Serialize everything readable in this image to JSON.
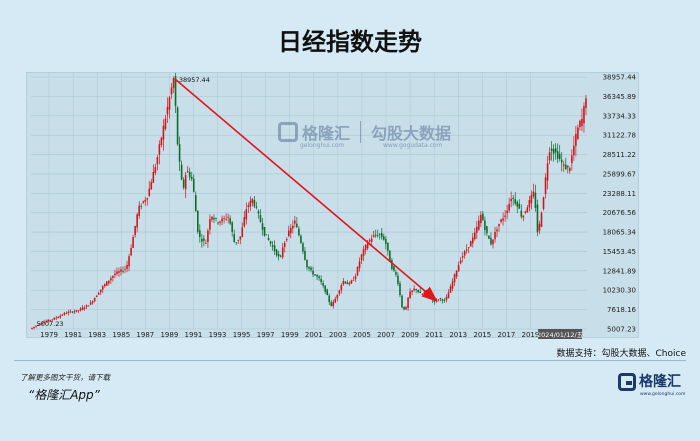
{
  "title": "日经指数走势",
  "source": "数据支持：勾股大数据、Choice",
  "footer": {
    "note": "了解更多图文干货，请下载",
    "app": "“格隆汇App”",
    "logo_text": "格隆汇",
    "logo_sub": "www.gelonghui.com"
  },
  "watermark": {
    "brand": "格隆汇",
    "brand_url": "gelonghui.com",
    "partner": "勾股大数据",
    "partner_url": "www.gogudata.com"
  },
  "colors": {
    "up": "#d0151b",
    "down": "#0d6b2a",
    "arrow": "#e0161c",
    "grid": "#a9c6d3"
  },
  "chart_data": {
    "type": "line",
    "title": "日经指数走势",
    "x_tick_labels": [
      "1979",
      "1981",
      "1983",
      "1985",
      "1987",
      "1989",
      "1991",
      "1993",
      "1995",
      "1997",
      "1999",
      "2001",
      "2003",
      "2005",
      "2007",
      "2009",
      "2011",
      "2013",
      "2015",
      "2017",
      "2019"
    ],
    "y_tick_labels": [
      "5007.23",
      "7618.16",
      "10230.30",
      "12841.89",
      "15453.45",
      "18065.34",
      "20676.56",
      "23288.11",
      "25899.67",
      "28511.22",
      "31122.78",
      "33734.33",
      "36345.89",
      "38957.44"
    ],
    "ylim": [
      5007.23,
      38957.44
    ],
    "xlim": [
      1978.0,
      2024.2
    ],
    "annotations": [
      {
        "label": "38957.44",
        "x": 1989.95,
        "y": 38957.44
      },
      {
        "label": "5007.23",
        "x": 1978.3,
        "y": 5007.23
      }
    ],
    "cursor_label": "2024/01/12/五",
    "arrow": {
      "from": [
        1989.95,
        38700
      ],
      "to": [
        2011.7,
        8800
      ]
    },
    "series": [
      {
        "x": [
          1978.0,
          1979.0,
          1980.0,
          1981.0,
          1982.0,
          1983.0,
          1984.0,
          1985.0,
          1986.0,
          1986.5,
          1987.0,
          1987.8,
          1988.0,
          1988.5,
          1989.0,
          1989.95,
          1990.3,
          1990.7,
          1991.0,
          1991.5,
          1992.0,
          1992.6,
          1993.0,
          1993.5,
          1994.0,
          1994.5,
          1995.0,
          1995.5,
          1996.0,
          1996.5,
          1997.0,
          1997.5,
          1998.0,
          1998.8,
          1999.0,
          1999.5,
          2000.0,
          2000.5,
          2001.0,
          2001.5,
          2002.0,
          2002.5,
          2003.0,
          2003.3,
          2004.0,
          2004.5,
          2005.0,
          2005.5,
          2006.0,
          2006.5,
          2007.0,
          2007.5,
          2008.0,
          2008.5,
          2008.9,
          2009.2,
          2009.5,
          2010.0,
          2010.5,
          2011.0,
          2011.5,
          2012.0,
          2012.5,
          2012.9,
          2013.3,
          2013.8,
          2014.3,
          2014.9,
          2015.5,
          2015.9,
          2016.3,
          2016.9,
          2017.5,
          2018.0,
          2018.5,
          2018.9,
          2019.3,
          2019.9,
          2020.2,
          2020.6,
          2021.0,
          2021.2,
          2021.8,
          2022.3,
          2022.8,
          2023.3,
          2023.6,
          2023.9,
          2024.2
        ],
        "values": [
          5007,
          5900,
          6400,
          7200,
          7500,
          8400,
          10600,
          12400,
          13200,
          16800,
          21200,
          23100,
          24500,
          27500,
          31500,
          38900,
          29000,
          23500,
          26500,
          25000,
          17500,
          16500,
          20500,
          19500,
          19700,
          20200,
          16500,
          17500,
          21400,
          22500,
          20200,
          17800,
          16500,
          14300,
          16100,
          18000,
          19500,
          16800,
          13500,
          12500,
          11800,
          10300,
          8100,
          8800,
          11500,
          11000,
          12000,
          14800,
          16500,
          17500,
          17800,
          17000,
          13500,
          12000,
          8000,
          7500,
          9800,
          10500,
          9600,
          10200,
          8700,
          9100,
          8800,
          10400,
          12300,
          14500,
          15800,
          17500,
          20500,
          18000,
          16500,
          19000,
          20500,
          22800,
          21800,
          20000,
          21500,
          23500,
          17500,
          22000,
          27500,
          29500,
          28500,
          27000,
          26500,
          30500,
          32500,
          33300,
          36500
        ]
      }
    ]
  }
}
